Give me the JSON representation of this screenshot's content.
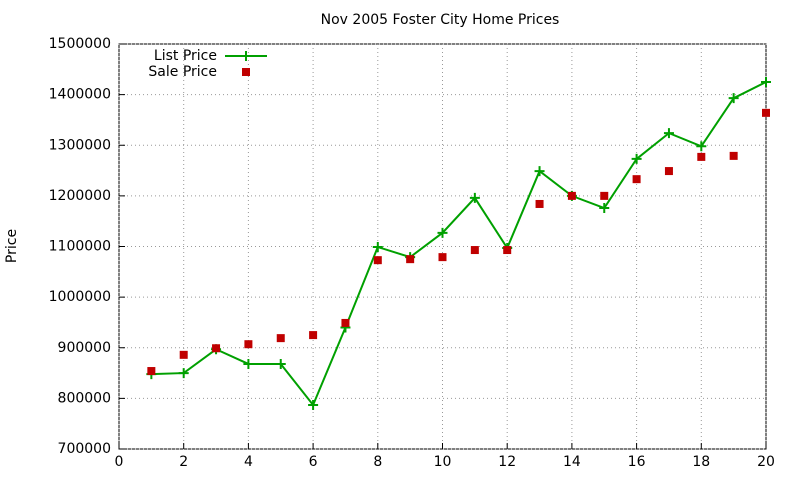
{
  "chart_data": {
    "type": "line",
    "title": "Nov 2005 Foster City Home Prices",
    "y_label": "Price",
    "x": [
      1,
      2,
      3,
      4,
      5,
      6,
      7,
      8,
      9,
      10,
      11,
      12,
      13,
      14,
      15,
      16,
      17,
      18,
      19,
      20
    ],
    "series": [
      {
        "name": "List Price",
        "color": "#00a000",
        "mode": "lines+points",
        "marker": "plus",
        "values": [
          848000,
          850000,
          897000,
          868000,
          868000,
          787000,
          940000,
          1099000,
          1079000,
          1127000,
          1196000,
          1097000,
          1249000,
          1200000,
          1176000,
          1273000,
          1324000,
          1298000,
          1393000,
          1425000
        ]
      },
      {
        "name": "Sale Price",
        "color": "#c00000",
        "mode": "points",
        "marker": "square",
        "values": [
          854000,
          886000,
          899000,
          907000,
          919000,
          925000,
          949000,
          1073000,
          1075000,
          1079000,
          1093000,
          1093000,
          1184000,
          1200000,
          1200000,
          1233000,
          1249000,
          1277000,
          1279000,
          1364000
        ]
      }
    ],
    "xlim": [
      0,
      20
    ],
    "xticks": [
      0,
      2,
      4,
      6,
      8,
      10,
      12,
      14,
      16,
      18,
      20
    ],
    "ylim": [
      700000,
      1500000
    ],
    "yticks": [
      700000,
      800000,
      900000,
      1000000,
      1100000,
      1200000,
      1300000,
      1400000,
      1500000
    ],
    "grid": true,
    "legend": "top-left"
  }
}
